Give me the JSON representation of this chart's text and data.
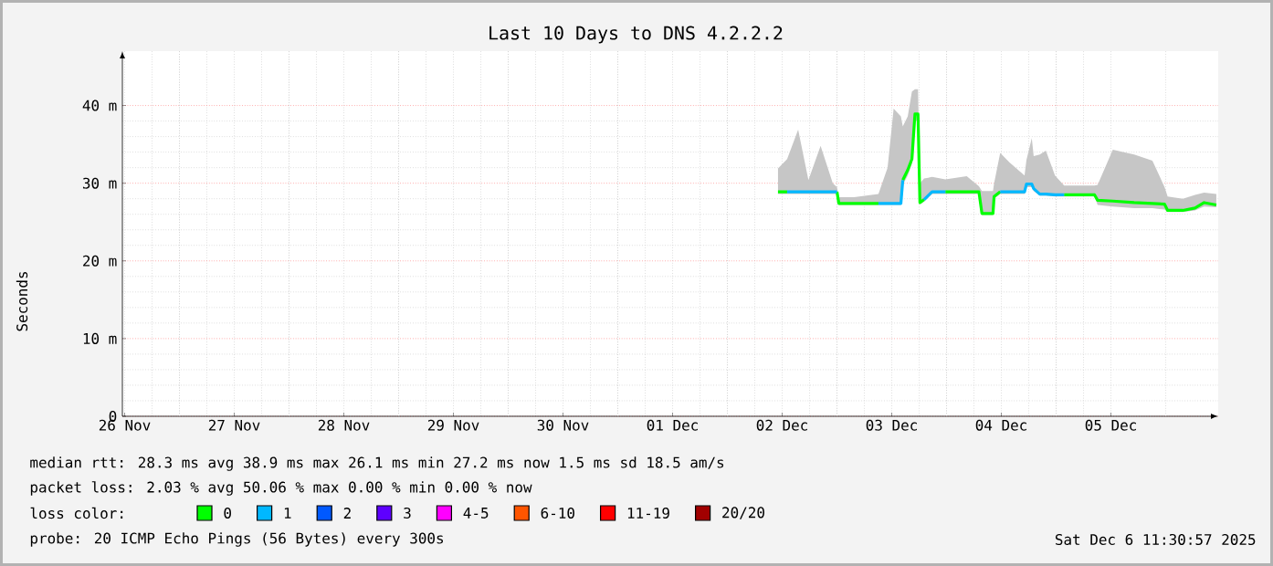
{
  "chart_data": {
    "type": "line",
    "title": "Last 10 Days to DNS 4.2.2.2",
    "ylabel": "Seconds",
    "xlim": [
      "2025-11-26T11:30",
      "2025-12-06T11:30"
    ],
    "xticks": [
      {
        "value": "2025-11-26T12:00",
        "label": "26 Nov"
      },
      {
        "value": "2025-11-27T12:00",
        "label": "27 Nov"
      },
      {
        "value": "2025-11-28T12:00",
        "label": "28 Nov"
      },
      {
        "value": "2025-11-29T12:00",
        "label": "29 Nov"
      },
      {
        "value": "2025-11-30T12:00",
        "label": "30 Nov"
      },
      {
        "value": "2025-12-01T12:00",
        "label": "01 Dec"
      },
      {
        "value": "2025-12-02T12:00",
        "label": "02 Dec"
      },
      {
        "value": "2025-12-03T12:00",
        "label": "03 Dec"
      },
      {
        "value": "2025-12-04T12:00",
        "label": "04 Dec"
      },
      {
        "value": "2025-12-05T12:00",
        "label": "05 Dec"
      },
      {
        "value": "2025-11-27T00:00",
        "label": null
      },
      {
        "value": "2025-11-28T00:00",
        "label": null
      },
      {
        "value": "2025-11-29T00:00",
        "label": null
      },
      {
        "value": "2025-11-30T00:00",
        "label": null
      },
      {
        "value": "2025-12-01T00:00",
        "label": null
      },
      {
        "value": "2025-12-02T00:00",
        "label": null
      },
      {
        "value": "2025-12-03T00:00",
        "label": null
      },
      {
        "value": "2025-12-04T00:00",
        "label": null
      },
      {
        "value": "2025-12-05T00:00",
        "label": null
      },
      {
        "value": "2025-12-06T00:00",
        "label": null
      }
    ],
    "ylim": [
      0,
      47
    ],
    "yticks": [
      0,
      {
        "value": 10,
        "label": "10 m"
      },
      {
        "value": 20,
        "label": "20 m"
      },
      {
        "value": 30,
        "label": "30 m"
      },
      {
        "value": 40,
        "label": "40 m"
      }
    ],
    "grid": true,
    "legend": "bottom",
    "legend_title": "loss color:",
    "x": [
      "2025-12-02T11:05",
      "2025-12-02T13:05",
      "2025-12-02T15:30",
      "2025-12-02T17:45",
      "2025-12-02T20:25",
      "2025-12-02T23:05",
      "2025-12-03T00:00",
      "2025-12-03T00:25",
      "2025-12-03T03:45",
      "2025-12-03T09:05",
      "2025-12-03T11:05",
      "2025-12-03T12:25",
      "2025-12-03T14:00",
      "2025-12-03T14:25",
      "2025-12-03T15:30",
      "2025-12-03T16:25",
      "2025-12-03T17:05",
      "2025-12-03T17:45",
      "2025-12-03T18:10",
      "2025-12-03T19:05",
      "2025-12-03T20:50",
      "2025-12-03T23:45",
      "2025-12-04T04:25",
      "2025-12-04T07:05",
      "2025-12-04T07:45",
      "2025-12-04T10:10",
      "2025-12-04T10:25",
      "2025-12-04T11:45",
      "2025-12-04T13:45",
      "2025-12-04T17:05",
      "2025-12-04T17:30",
      "2025-12-04T18:40",
      "2025-12-04T19:05",
      "2025-12-04T20:25",
      "2025-12-04T21:45",
      "2025-12-04T23:45",
      "2025-12-05T01:45",
      "2025-12-05T08:25",
      "2025-12-05T09:05",
      "2025-12-05T12:25",
      "2025-12-05T17:05",
      "2025-12-05T21:05",
      "2025-12-05T23:45",
      "2025-12-06T00:25",
      "2025-12-06T03:45",
      "2025-12-06T06:25",
      "2025-12-06T08:25",
      "2025-12-06T11:05"
    ],
    "series": [
      {
        "name": "0",
        "color": "#00ff00",
        "values": [
          28.9,
          28.9,
          null,
          null,
          null,
          null,
          28.9,
          27.4,
          27.4,
          27.4,
          null,
          null,
          null,
          30.4,
          31.7,
          33.1,
          38.9,
          38.9,
          27.5,
          27.9,
          null,
          28.9,
          28.9,
          28.9,
          26.1,
          26.1,
          28.3,
          28.9,
          null,
          null,
          null,
          null,
          null,
          null,
          null,
          null,
          28.5,
          28.5,
          27.8,
          27.7,
          27.5,
          27.4,
          27.3,
          26.5,
          26.5,
          26.8,
          27.5,
          27.2
        ],
        "upper": [
          31.9,
          33.1,
          36.9,
          30.4,
          34.8,
          30.0,
          29.5,
          28.2,
          28.2,
          28.6,
          32.0,
          39.6,
          38.6,
          37.3,
          38.6,
          41.8,
          42.1,
          42.1,
          30.0,
          30.6,
          30.8,
          30.5,
          30.9,
          29.6,
          29.0,
          29.0,
          30.0,
          33.9,
          32.7,
          31.0,
          33.0,
          35.8,
          33.5,
          33.7,
          34.2,
          31.0,
          29.7,
          29.7,
          29.8,
          34.3,
          33.7,
          32.9,
          29.5,
          28.3,
          28.0,
          28.5,
          28.8,
          28.6
        ],
        "lower": [
          28.6,
          28.6,
          28.6,
          28.6,
          28.6,
          28.6,
          28.6,
          27.2,
          27.2,
          27.2,
          27.2,
          27.2,
          27.2,
          29.8,
          31.0,
          32.5,
          38.0,
          38.0,
          27.3,
          27.6,
          28.6,
          28.6,
          28.6,
          28.6,
          25.9,
          25.9,
          28.0,
          28.6,
          28.6,
          28.6,
          29.5,
          29.5,
          29.0,
          28.4,
          28.4,
          28.3,
          28.3,
          28.3,
          27.2,
          27.0,
          26.8,
          26.8,
          26.6,
          26.3,
          26.3,
          26.5,
          27.0,
          26.9
        ]
      },
      {
        "name": "1",
        "color": "#00b8ff",
        "values": [
          null,
          28.9,
          28.9,
          28.9,
          28.9,
          28.9,
          28.9,
          null,
          null,
          27.4,
          27.4,
          27.4,
          27.4,
          30.4,
          null,
          null,
          null,
          null,
          null,
          27.9,
          28.9,
          28.9,
          null,
          null,
          null,
          null,
          null,
          28.9,
          28.9,
          28.9,
          29.9,
          29.9,
          29.3,
          28.6,
          28.6,
          28.5,
          28.5,
          null,
          null,
          null,
          null,
          null,
          null,
          null,
          null,
          null,
          null,
          null
        ]
      },
      {
        "name": "2",
        "color": "#0059ff",
        "values": [
          null,
          null,
          null,
          null,
          null,
          null,
          null,
          null,
          null,
          null,
          null,
          null,
          null,
          null,
          null,
          null,
          null,
          null,
          null,
          null,
          null,
          null,
          null,
          null,
          null,
          null,
          null,
          null,
          null,
          null,
          null,
          null,
          null,
          null,
          null,
          null,
          null,
          null,
          null,
          null,
          null,
          null,
          null,
          null,
          null,
          null,
          null,
          null
        ]
      },
      {
        "name": "3",
        "color": "#5e00ff",
        "values": [
          null,
          null,
          null,
          null,
          null,
          null,
          null,
          null,
          null,
          null,
          null,
          null,
          null,
          null,
          null,
          null,
          null,
          null,
          null,
          null,
          null,
          null,
          null,
          null,
          null,
          null,
          null,
          null,
          null,
          null,
          null,
          null,
          null,
          null,
          null,
          null,
          null,
          null,
          null,
          null,
          null,
          null,
          null,
          null,
          null,
          null,
          null,
          null
        ]
      },
      {
        "name": "4-5",
        "color": "#ff00ff",
        "values": [
          null,
          null,
          null,
          null,
          null,
          null,
          null,
          null,
          null,
          null,
          null,
          null,
          null,
          null,
          null,
          null,
          null,
          null,
          null,
          null,
          null,
          null,
          null,
          null,
          null,
          null,
          null,
          null,
          null,
          null,
          null,
          null,
          null,
          null,
          null,
          null,
          null,
          null,
          null,
          null,
          null,
          null,
          null,
          null,
          null,
          null,
          null,
          null
        ]
      },
      {
        "name": "6-10",
        "color": "#ff5500",
        "values": [
          null,
          null,
          null,
          null,
          null,
          null,
          null,
          null,
          null,
          null,
          null,
          null,
          null,
          null,
          null,
          null,
          null,
          null,
          null,
          null,
          null,
          null,
          null,
          null,
          null,
          null,
          null,
          null,
          null,
          null,
          null,
          null,
          null,
          null,
          null,
          null,
          null,
          null,
          null,
          null,
          null,
          null,
          null,
          null,
          null,
          null,
          null,
          null
        ]
      },
      {
        "name": "11-19",
        "color": "#ff0000",
        "values": [
          null,
          null,
          null,
          null,
          null,
          null,
          null,
          null,
          null,
          null,
          null,
          null,
          null,
          null,
          null,
          null,
          null,
          null,
          null,
          null,
          null,
          null,
          null,
          null,
          null,
          null,
          null,
          null,
          null,
          null,
          null,
          null,
          null,
          null,
          null,
          null,
          null,
          null,
          null,
          null,
          null,
          null,
          null,
          null,
          null,
          null,
          null,
          null
        ]
      },
      {
        "name": "20/20",
        "color": "#a10000",
        "values": [
          null,
          null,
          null,
          null,
          null,
          null,
          null,
          null,
          null,
          null,
          null,
          null,
          null,
          null,
          null,
          null,
          null,
          null,
          null,
          null,
          null,
          null,
          null,
          null,
          null,
          null,
          null,
          null,
          null,
          null,
          null,
          null,
          null,
          null,
          null,
          null,
          null,
          null,
          null,
          null,
          null,
          null,
          null,
          null,
          null,
          null,
          null,
          null
        ]
      }
    ],
    "annotations": [
      "median rtt:  28.3 ms avg  38.9 ms max  26.1 ms min  27.2 ms now  1.5 ms sd  18.5   am/s",
      "packet loss: 2.03 % avg  50.06 % max  0.00 % min  0.00 % now",
      "probe:       20 ICMP Echo Pings (56 Bytes) every 300s",
      "Sat Dec  6 11:30:57 2025"
    ]
  }
}
